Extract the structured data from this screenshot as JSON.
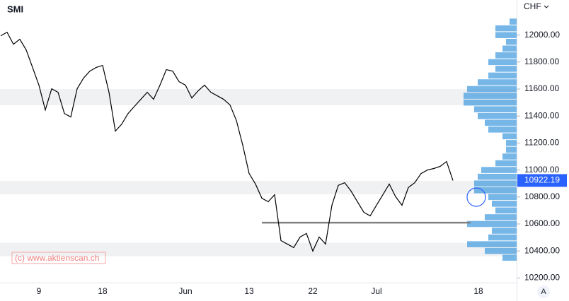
{
  "chart_data": {
    "type": "line",
    "title": "SMI",
    "currency": "CHF",
    "watermark": "(c) www.aktienscan.ch",
    "scale_button": "A",
    "categories": [
      null,
      null,
      null,
      null,
      null,
      null,
      "9",
      null,
      null,
      null,
      null,
      null,
      null,
      null,
      null,
      null,
      "18",
      null,
      null,
      null,
      null,
      null,
      null,
      null,
      null,
      null,
      null,
      null,
      null,
      "Jun",
      null,
      null,
      null,
      null,
      null,
      null,
      null,
      null,
      null,
      "13",
      null,
      null,
      null,
      null,
      null,
      null,
      null,
      null,
      null,
      "22",
      null,
      null,
      null,
      null,
      null,
      null,
      null,
      null,
      null,
      "Jul",
      null,
      null,
      null,
      null,
      null,
      null,
      null,
      null,
      null,
      null,
      null,
      null,
      null,
      null,
      null,
      "18",
      null,
      null,
      null,
      null,
      null
    ],
    "series": [
      {
        "name": "SMI",
        "color": "#000000",
        "values": [
          11995,
          12021,
          11932,
          11969,
          11890,
          11760,
          11629,
          11445,
          11602,
          11576,
          11419,
          11393,
          11602,
          11681,
          11733,
          11760,
          11775,
          11576,
          11288,
          11340,
          11419,
          11472,
          11524,
          11576,
          11524,
          11629,
          11744,
          11733,
          11655,
          11629,
          11534,
          11587,
          11629,
          11576,
          11550,
          11524,
          11482,
          11367,
          11184,
          10974,
          10896,
          10791,
          10765,
          10817,
          10477,
          10451,
          10425,
          10503,
          10530,
          10399,
          10503,
          10451,
          10739,
          10886,
          10906,
          10844,
          10765,
          10687,
          10660,
          10739,
          10817,
          10896,
          10802,
          10739,
          10870,
          10906,
          10974,
          11000,
          11011,
          11027,
          11063,
          10922.19,
          null,
          null,
          null,
          null,
          null,
          null,
          null,
          null,
          null
        ]
      }
    ],
    "ylim": [
      10160,
      12260
    ],
    "yticks": [
      {
        "value": 10200,
        "label": "10200.00"
      },
      {
        "value": 10400,
        "label": "10400.00"
      },
      {
        "value": 10600,
        "label": "10600.00"
      },
      {
        "value": 10800,
        "label": "10800.00"
      },
      {
        "value": 11000,
        "label": "11000.00"
      },
      {
        "value": 11200,
        "label": "11200.00"
      },
      {
        "value": 11400,
        "label": "11400.00"
      },
      {
        "value": 11600,
        "label": "11600.00"
      },
      {
        "value": 11800,
        "label": "11800.00"
      },
      {
        "value": 12000,
        "label": "12000.00"
      }
    ],
    "grid": false,
    "last_price_color": "#2962ff",
    "zones": [
      [
        11480,
        11600
      ],
      [
        10820,
        10920
      ],
      [
        10360,
        10460
      ]
    ],
    "zone_color": "#f0f1f3",
    "support_level": 10610,
    "support_color": "#808080",
    "volume_profile": {
      "color": "#4a9fe0",
      "levels": [
        10350,
        10400,
        10450,
        10500,
        10550,
        10600,
        10650,
        10700,
        10750,
        10800,
        10850,
        10900,
        10950,
        11000,
        11050,
        11100,
        11150,
        11200,
        11250,
        11300,
        11350,
        11400,
        11450,
        11500,
        11550,
        11600,
        11650,
        11700,
        11750,
        11800,
        11850,
        11900,
        11950,
        12000,
        12050,
        12100
      ],
      "values": [
        20,
        45,
        70,
        40,
        35,
        70,
        45,
        30,
        35,
        40,
        60,
        60,
        55,
        50,
        30,
        20,
        15,
        15,
        20,
        40,
        45,
        55,
        60,
        75,
        75,
        70,
        55,
        40,
        30,
        40,
        30,
        20,
        15,
        30,
        30,
        10
      ]
    }
  }
}
